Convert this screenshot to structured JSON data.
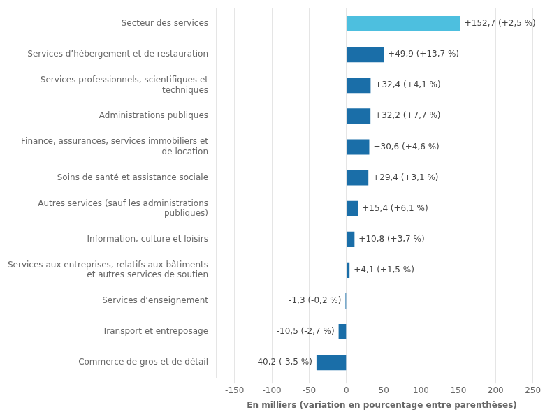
{
  "chart_data": {
    "type": "bar",
    "orientation": "horizontal",
    "xlabel": "En milliers (variation en pourcentage entre parenthèses)",
    "categories": [
      "Commerce de gros et de détail",
      "Transport et entreposage",
      "Services d’enseignement",
      "Services aux entreprises, relatifs aux bâtiments\net autres services de soutien",
      "Information, culture et loisirs",
      "Autres services (sauf les administrations\npubliques)",
      "Soins de santé et assistance sociale",
      "Finance, assurances, services immobiliers et\nde location",
      "Administrations publiques",
      "Services professionnels, scientifiques et\ntechniques",
      "Services d’hébergement et de restauration",
      "Secteur des services"
    ],
    "values": [
      -40.2,
      -10.5,
      -1.3,
      4.1,
      10.8,
      15.4,
      29.4,
      30.6,
      32.2,
      32.4,
      49.9,
      152.7
    ],
    "value_labels": [
      "-40,2 (-3,5 %)",
      "-10,5 (-2,7 %)",
      "-1,3 (-0,2 %)",
      "+4,1 (+1,5 %)",
      "+10,8 (+3,7 %)",
      "+15,4 (+6,1 %)",
      "+29,4 (+3,1 %)",
      "+30,6 (+4,6 %)",
      "+32,2 (+7,7 %)",
      "+32,4 (+4,1 %)",
      "+49,9 (+13,7 %)",
      "+152,7 (+2,5 %)"
    ],
    "data_labels": true,
    "colors": [
      "#1a6ea8",
      "#1a6ea8",
      "#1a6ea8",
      "#1a6ea8",
      "#1a6ea8",
      "#1a6ea8",
      "#1a6ea8",
      "#1a6ea8",
      "#1a6ea8",
      "#1a6ea8",
      "#1a6ea8",
      "#4dbfdf"
    ],
    "xlim": [
      -175,
      270
    ],
    "xticks": [
      -150,
      -100,
      -50,
      0,
      50,
      100,
      150,
      200,
      250
    ],
    "grid": true
  }
}
